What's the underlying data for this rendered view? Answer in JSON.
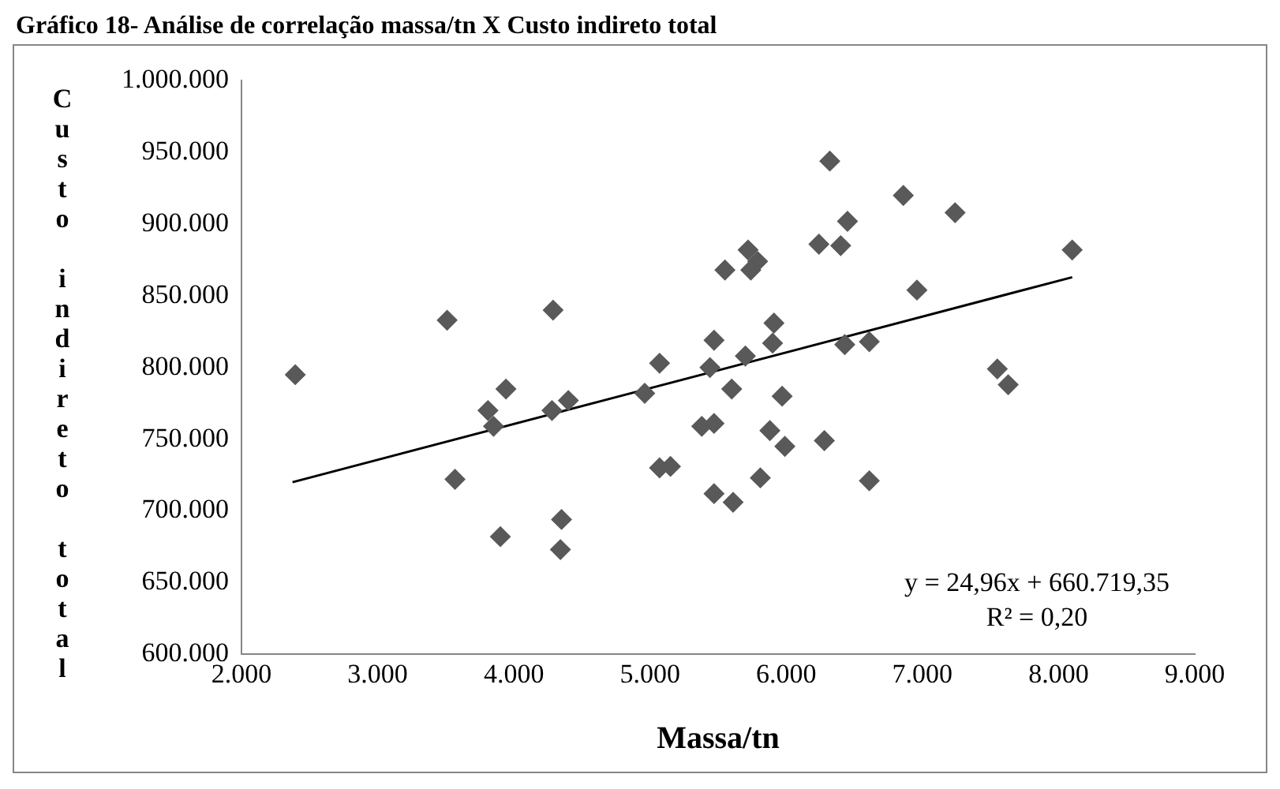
{
  "chart_data": {
    "type": "scatter",
    "title": "Gráfico 18- Análise de correlação massa/tn X Custo indireto total",
    "xlabel": "Massa/tn",
    "ylabel": "Custo indireto total",
    "xlim": [
      2000,
      9000
    ],
    "xticks": [
      {
        "value": 2000,
        "label": "2.000"
      },
      {
        "value": 3000,
        "label": "3.000"
      },
      {
        "value": 4000,
        "label": "4.000"
      },
      {
        "value": 5000,
        "label": "5.000"
      },
      {
        "value": 6000,
        "label": "6.000"
      },
      {
        "value": 7000,
        "label": "7.000"
      },
      {
        "value": 8000,
        "label": "8.000"
      },
      {
        "value": 9000,
        "label": "9.000"
      }
    ],
    "ylim": [
      600000,
      1000000
    ],
    "yticks": [
      {
        "value": 600000,
        "label": "600.000"
      },
      {
        "value": 650000,
        "label": "650.000"
      },
      {
        "value": 700000,
        "label": "700.000"
      },
      {
        "value": 750000,
        "label": "750.000"
      },
      {
        "value": 800000,
        "label": "800.000"
      },
      {
        "value": 850000,
        "label": "850.000"
      },
      {
        "value": 900000,
        "label": "900.000"
      },
      {
        "value": 950000,
        "label": "950.000"
      },
      {
        "value": 1000000,
        "label": "1.000.000"
      }
    ],
    "grid": false,
    "legend": false,
    "marker": "diamond",
    "annotations": [
      "y = 24,96x + 660.719,35",
      "R² = 0,20"
    ],
    "series": [
      {
        "color": "#595959",
        "x": [
          2395,
          3510,
          4288,
          3942,
          3810,
          3851,
          4280,
          4400,
          3568,
          3901,
          4350,
          4342,
          4961,
          5070,
          5070,
          5150,
          5470,
          5440,
          5550,
          5380,
          5470,
          5470,
          5610,
          5600,
          6320,
          6860,
          7240,
          8100,
          6450,
          6240,
          6400,
          5720,
          5790,
          5740,
          6960,
          5910,
          5900,
          5700,
          6430,
          6610,
          7550,
          7630,
          5970,
          5880,
          5990,
          6280,
          5810,
          6610
        ],
        "values": [
          795000,
          833000,
          840000,
          785000,
          770000,
          759000,
          770000,
          777000,
          722000,
          682000,
          694000,
          673000,
          782000,
          803000,
          730000,
          731000,
          819000,
          800000,
          868000,
          759000,
          761000,
          712000,
          706000,
          785000,
          944000,
          920000,
          908000,
          882000,
          902000,
          886000,
          885000,
          882000,
          874000,
          868000,
          854000,
          831000,
          817000,
          808000,
          816000,
          818000,
          799000,
          788000,
          780000,
          756000,
          745000,
          749000,
          723000,
          721000
        ]
      },
      {
        "type": "line",
        "color": "#000000",
        "marker": "none",
        "x": [
          2375,
          8100
        ],
        "values": [
          720000,
          863000
        ]
      }
    ]
  }
}
